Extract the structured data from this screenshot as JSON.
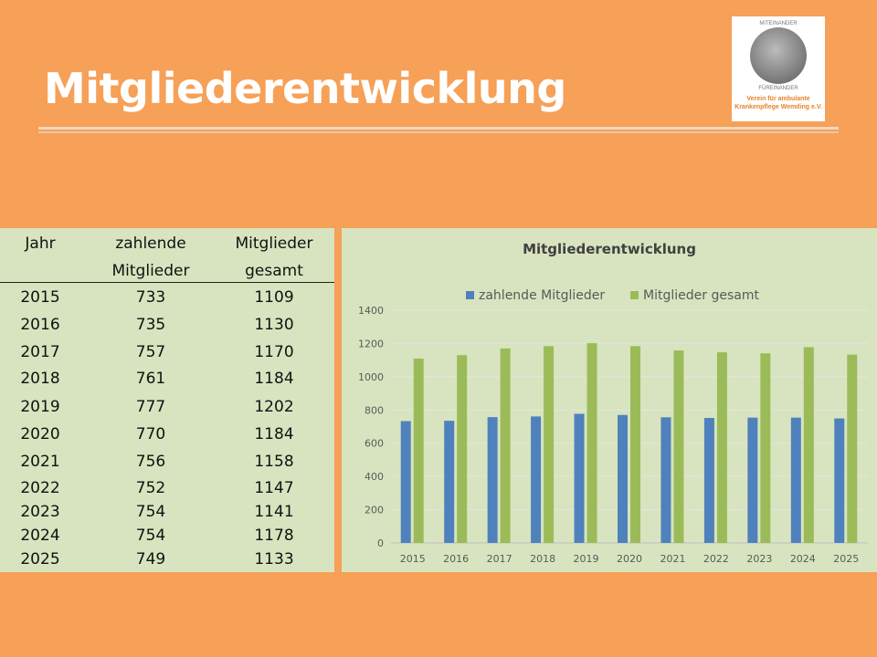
{
  "title": "Mitgliederentwicklung",
  "logo": {
    "top_text": "MITEINANDER",
    "bottom_text": "FÜREINANDER",
    "org_line1": "Verein für ambulante",
    "org_line2": "Krankenpflege Wemding e.V."
  },
  "table": {
    "headers": [
      [
        "Jahr",
        ""
      ],
      [
        "zahlende",
        "Mitglieder"
      ],
      [
        "Mitglieder",
        "gesamt"
      ]
    ],
    "rows": [
      [
        "2015",
        "733",
        "1109"
      ],
      [
        "2016",
        "735",
        "1130"
      ],
      [
        "2017",
        "757",
        "1170"
      ],
      [
        "2018",
        "761",
        "1184"
      ],
      [
        "2019",
        "777",
        "1202"
      ],
      [
        "2020",
        "770",
        "1184"
      ],
      [
        "2021",
        "756",
        "1158"
      ],
      [
        "2022",
        "752",
        "1147"
      ],
      [
        "2023",
        "754",
        "1141"
      ],
      [
        "2024",
        "754",
        "1178"
      ],
      [
        "2025",
        "749",
        "1133"
      ]
    ]
  },
  "chart_data": {
    "type": "bar",
    "title": "Mitgliederentwicklung",
    "categories": [
      "2015",
      "2016",
      "2017",
      "2018",
      "2019",
      "2020",
      "2021",
      "2022",
      "2023",
      "2024",
      "2025"
    ],
    "series": [
      {
        "name": "zahlende Mitglieder",
        "color": "#4F81BD",
        "values": [
          733,
          735,
          757,
          761,
          777,
          770,
          756,
          752,
          754,
          754,
          749
        ]
      },
      {
        "name": "Mitglieder gesamt",
        "color": "#9BBB59",
        "values": [
          1109,
          1130,
          1170,
          1184,
          1202,
          1184,
          1158,
          1147,
          1141,
          1178,
          1133
        ]
      }
    ],
    "ylim": [
      0,
      1400
    ],
    "yticks": [
      0,
      200,
      400,
      600,
      800,
      1000,
      1200,
      1400
    ],
    "grid": true,
    "legend": "top"
  }
}
